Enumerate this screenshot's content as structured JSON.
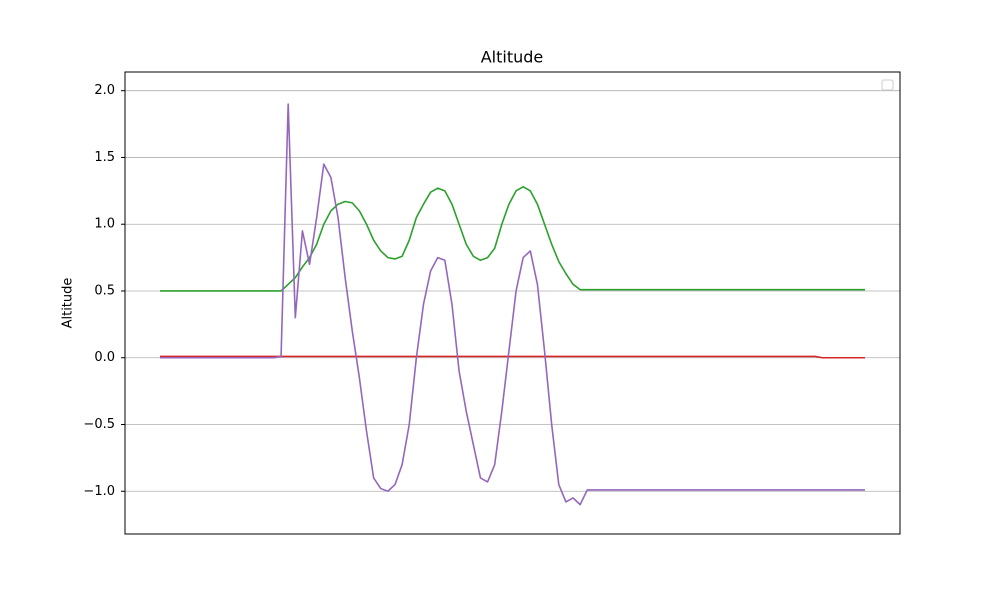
{
  "chart_data": {
    "type": "line",
    "title": "Altitude",
    "y_label": "Altitude",
    "ylim": [
      -1.32,
      2.14
    ],
    "yticks": [
      {
        "value": -1.0,
        "label": "−1.0"
      },
      {
        "value": -0.5,
        "label": "−0.5"
      },
      {
        "value": 0,
        "label": "0.0"
      },
      0.5,
      {
        "value": 1.0,
        "label": "1.0"
      },
      1.5,
      {
        "value": 2.0,
        "label": "2.0"
      }
    ],
    "grid": true,
    "legend": "upper right",
    "series": [
      {
        "color": "#2ca02c",
        "values": [
          0.5,
          0.5,
          0.5,
          0.5,
          0.5,
          0.5,
          0.5,
          0.5,
          0.5,
          0.5,
          0.5,
          0.5,
          0.5,
          0.5,
          0.5,
          0.5,
          0.5,
          0.5,
          0.55,
          0.6,
          0.68,
          0.75,
          0.85,
          1.0,
          1.1,
          1.15,
          1.17,
          1.16,
          1.1,
          1.0,
          0.88,
          0.8,
          0.75,
          0.74,
          0.76,
          0.88,
          1.05,
          1.15,
          1.24,
          1.27,
          1.25,
          1.15,
          1.0,
          0.85,
          0.76,
          0.73,
          0.75,
          0.82,
          1.0,
          1.15,
          1.25,
          1.28,
          1.25,
          1.15,
          1.0,
          0.85,
          0.72,
          0.63,
          0.55,
          0.51,
          0.51,
          0.51,
          0.51,
          0.51,
          0.51,
          0.51,
          0.51,
          0.51,
          0.51,
          0.51,
          0.51,
          0.51,
          0.51,
          0.51,
          0.51,
          0.51,
          0.51,
          0.51,
          0.51,
          0.51,
          0.51,
          0.51,
          0.51,
          0.51,
          0.51,
          0.51,
          0.51,
          0.51,
          0.51,
          0.51,
          0.51,
          0.51,
          0.51,
          0.51,
          0.51,
          0.51,
          0.51,
          0.51,
          0.51,
          0.51
        ]
      },
      {
        "color": "#d62728",
        "values": [
          0.01,
          0.01,
          0.01,
          0.01,
          0.01,
          0.01,
          0.01,
          0.01,
          0.01,
          0.01,
          0.01,
          0.01,
          0.01,
          0.01,
          0.01,
          0.01,
          0.01,
          0.01,
          0.01,
          0.01,
          0.01,
          0.01,
          0.01,
          0.01,
          0.01,
          0.01,
          0.01,
          0.01,
          0.01,
          0.01,
          0.01,
          0.01,
          0.01,
          0.01,
          0.01,
          0.01,
          0.01,
          0.01,
          0.01,
          0.01,
          0.01,
          0.01,
          0.01,
          0.01,
          0.01,
          0.01,
          0.01,
          0.01,
          0.01,
          0.01,
          0.01,
          0.01,
          0.01,
          0.01,
          0.01,
          0.01,
          0.01,
          0.01,
          0.01,
          0.01,
          0.01,
          0.01,
          0.01,
          0.01,
          0.01,
          0.01,
          0.01,
          0.01,
          0.01,
          0.01,
          0.01,
          0.01,
          0.01,
          0.01,
          0.01,
          0.01,
          0.01,
          0.01,
          0.01,
          0.01,
          0.01,
          0.01,
          0.01,
          0.01,
          0.01,
          0.01,
          0.01,
          0.01,
          0.01,
          0.01,
          0.01,
          0.01,
          0.01,
          0,
          0,
          0,
          0,
          0,
          0,
          0
        ]
      },
      {
        "color": "#9467bd",
        "values": [
          0,
          0,
          0,
          0,
          0,
          0,
          0,
          0,
          0,
          0,
          0,
          0,
          0,
          0,
          0,
          0,
          0,
          0.01,
          1.9,
          0.3,
          0.95,
          0.7,
          1.05,
          1.45,
          1.35,
          1.05,
          0.6,
          0.2,
          -0.15,
          -0.55,
          -0.9,
          -0.98,
          -1.0,
          -0.95,
          -0.8,
          -0.5,
          0.0,
          0.4,
          0.65,
          0.75,
          0.73,
          0.4,
          -0.1,
          -0.4,
          -0.65,
          -0.9,
          -0.93,
          -0.8,
          -0.4,
          0.05,
          0.5,
          0.75,
          0.8,
          0.55,
          0.05,
          -0.5,
          -0.95,
          -1.08,
          -1.05,
          -1.1,
          -0.99,
          -0.99,
          -0.99,
          -0.99,
          -0.99,
          -0.99,
          -0.99,
          -0.99,
          -0.99,
          -0.99,
          -0.99,
          -0.99,
          -0.99,
          -0.99,
          -0.99,
          -0.99,
          -0.99,
          -0.99,
          -0.99,
          -0.99,
          -0.99,
          -0.99,
          -0.99,
          -0.99,
          -0.99,
          -0.99,
          -0.99,
          -0.99,
          -0.99,
          -0.99,
          -0.99,
          -0.99,
          -0.99,
          -0.99,
          -0.99,
          -0.99,
          -0.99,
          -0.99,
          -0.99,
          -0.99
        ]
      }
    ]
  }
}
